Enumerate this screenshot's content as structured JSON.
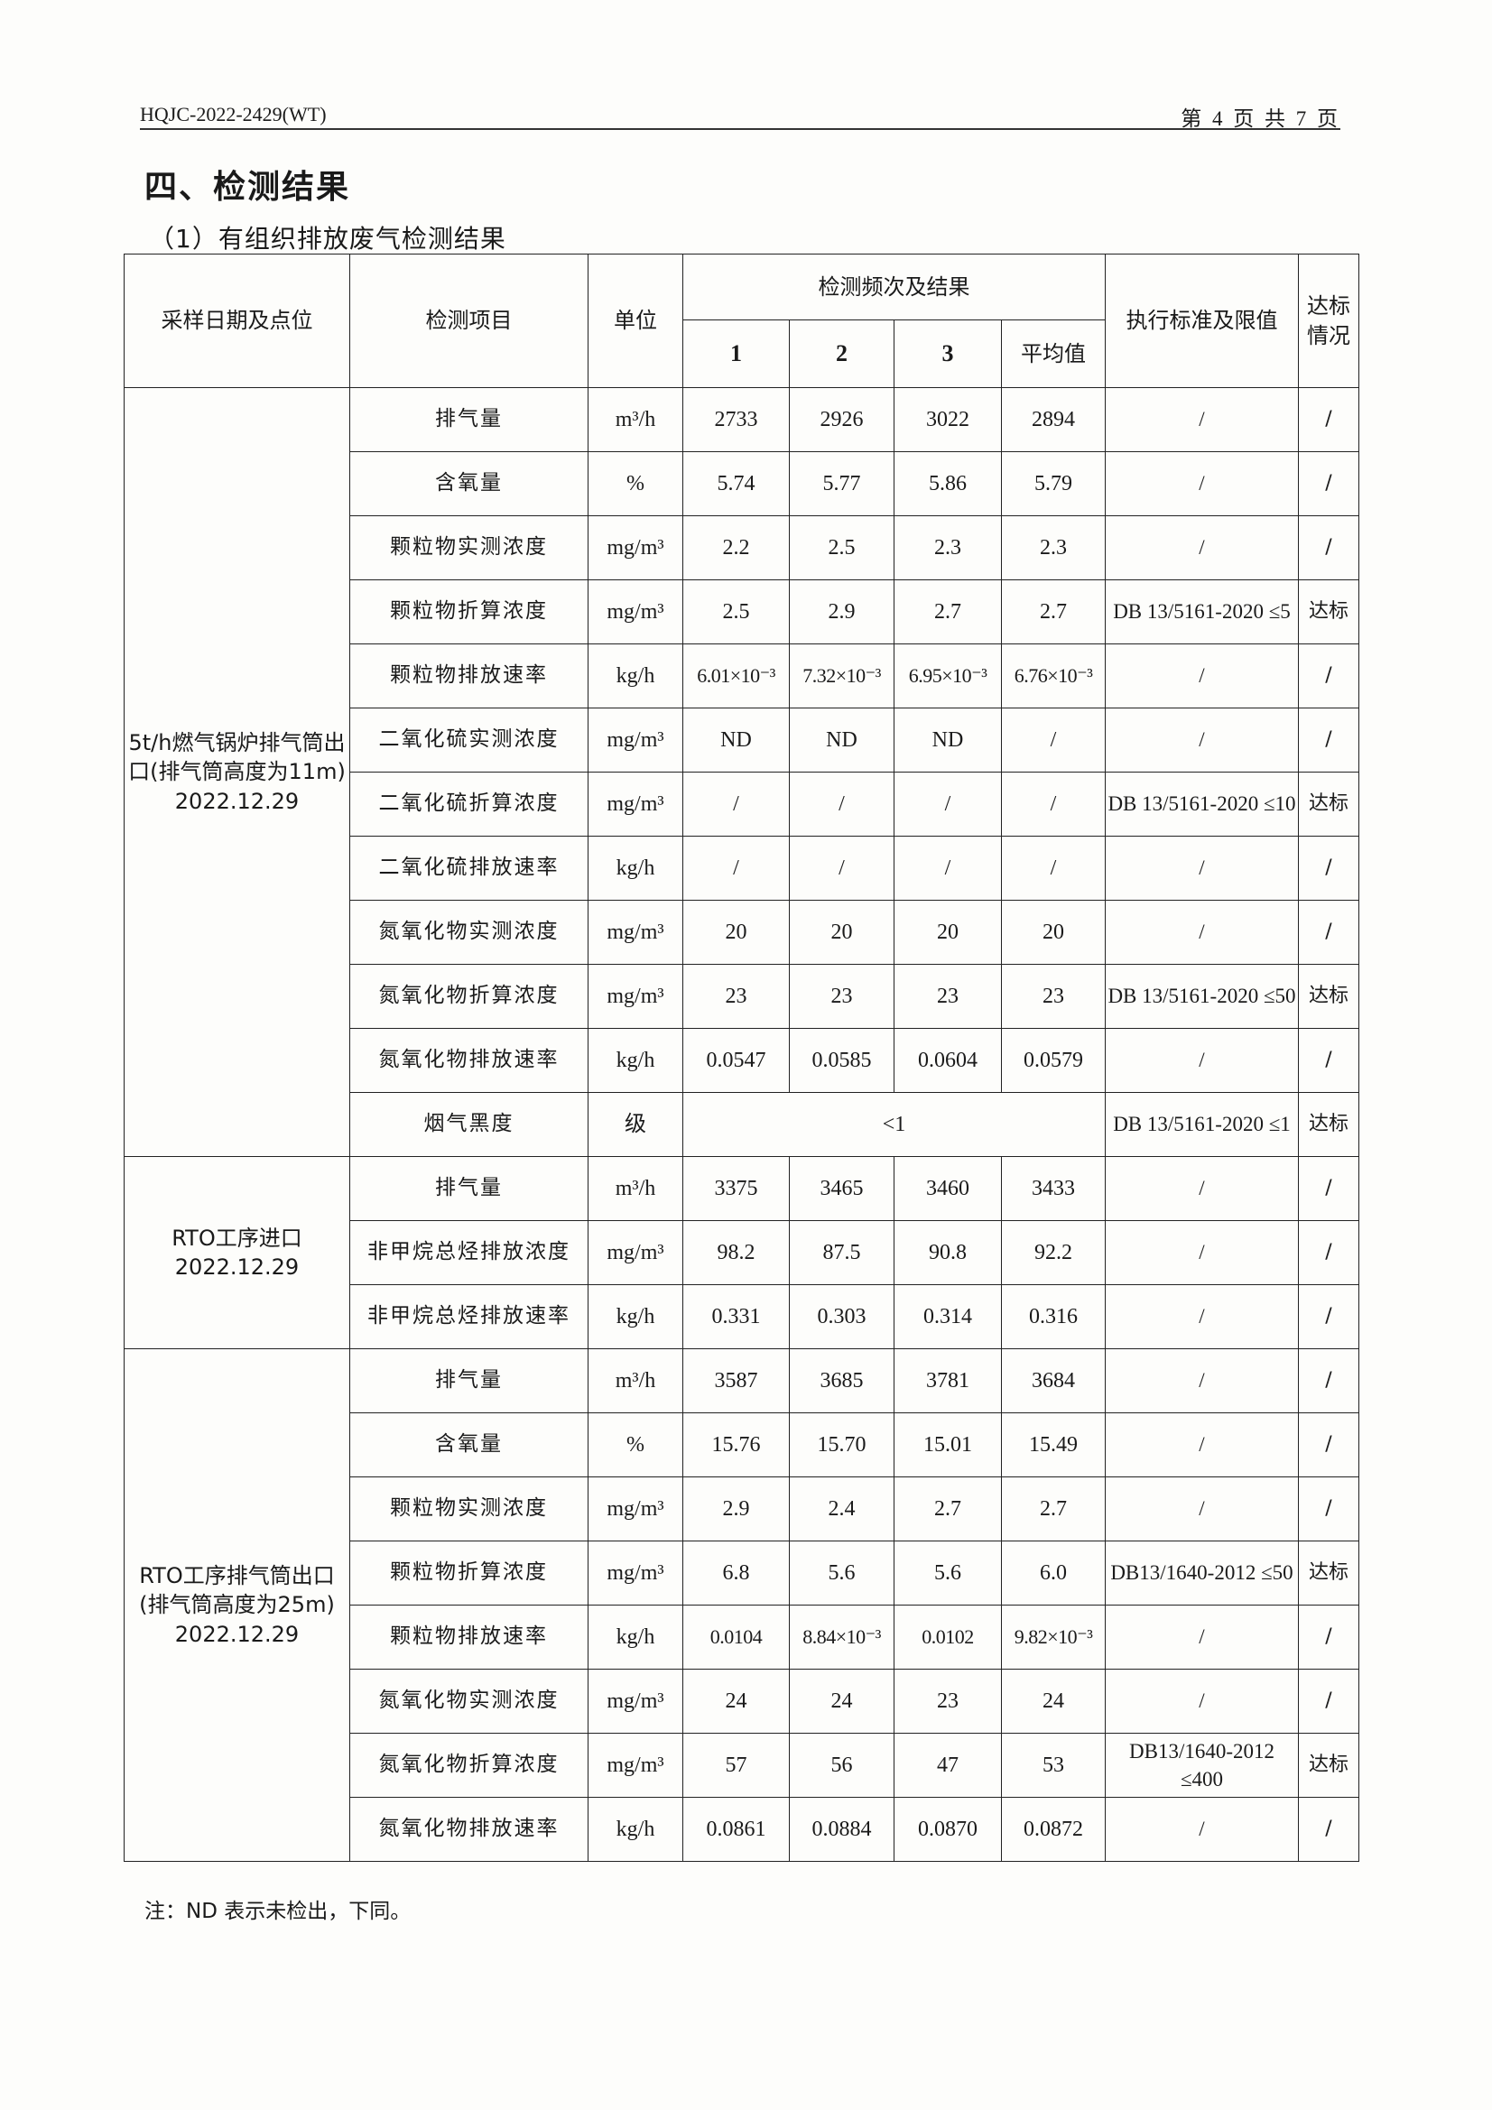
{
  "header": {
    "report_no": "HQJC-2022-2429(WT)",
    "page": "第 4 页 共 7 页"
  },
  "section_title": "四、检测结果",
  "subsection_title": "（1）有组织排放废气检测结果",
  "table": {
    "headers": {
      "location": "采样日期及点位",
      "item": "检测项目",
      "unit": "单位",
      "results": "检测频次及结果",
      "run1": "1",
      "run2": "2",
      "run3": "3",
      "avg": "平均值",
      "standard": "执行标准及限值",
      "compliance": "达标情况"
    },
    "groups": [
      {
        "location": "5t/h燃气锅炉排气筒出口(排气筒高度为11m) 2022.12.29",
        "rows": [
          {
            "item": "排气量",
            "unit": "m³/h",
            "v": [
              "2733",
              "2926",
              "3022",
              "2894"
            ],
            "std": "/",
            "ok": "/"
          },
          {
            "item": "含氧量",
            "unit": "%",
            "v": [
              "5.74",
              "5.77",
              "5.86",
              "5.79"
            ],
            "std": "/",
            "ok": "/"
          },
          {
            "item": "颗粒物实测浓度",
            "unit": "mg/m³",
            "v": [
              "2.2",
              "2.5",
              "2.3",
              "2.3"
            ],
            "std": "/",
            "ok": "/"
          },
          {
            "item": "颗粒物折算浓度",
            "unit": "mg/m³",
            "v": [
              "2.5",
              "2.9",
              "2.7",
              "2.7"
            ],
            "std": "DB 13/5161-2020 ≤5",
            "ok": "达标"
          },
          {
            "item": "颗粒物排放速率",
            "unit": "kg/h",
            "v": [
              "6.01×10⁻³",
              "7.32×10⁻³",
              "6.95×10⁻³",
              "6.76×10⁻³"
            ],
            "std": "/",
            "ok": "/"
          },
          {
            "item": "二氧化硫实测浓度",
            "unit": "mg/m³",
            "v": [
              "ND",
              "ND",
              "ND",
              "/"
            ],
            "std": "/",
            "ok": "/"
          },
          {
            "item": "二氧化硫折算浓度",
            "unit": "mg/m³",
            "v": [
              "/",
              "/",
              "/",
              "/"
            ],
            "std": "DB 13/5161-2020 ≤10",
            "ok": "达标"
          },
          {
            "item": "二氧化硫排放速率",
            "unit": "kg/h",
            "v": [
              "/",
              "/",
              "/",
              "/"
            ],
            "std": "/",
            "ok": "/"
          },
          {
            "item": "氮氧化物实测浓度",
            "unit": "mg/m³",
            "v": [
              "20",
              "20",
              "20",
              "20"
            ],
            "std": "/",
            "ok": "/"
          },
          {
            "item": "氮氧化物折算浓度",
            "unit": "mg/m³",
            "v": [
              "23",
              "23",
              "23",
              "23"
            ],
            "std": "DB 13/5161-2020 ≤50",
            "ok": "达标"
          },
          {
            "item": "氮氧化物排放速率",
            "unit": "kg/h",
            "v": [
              "0.0547",
              "0.0585",
              "0.0604",
              "0.0579"
            ],
            "std": "/",
            "ok": "/"
          },
          {
            "item": "烟气黑度",
            "unit": "级",
            "merged": "<1",
            "std": "DB 13/5161-2020 ≤1",
            "ok": "达标"
          }
        ]
      },
      {
        "location": "RTO工序进口 2022.12.29",
        "rows": [
          {
            "item": "排气量",
            "unit": "m³/h",
            "v": [
              "3375",
              "3465",
              "3460",
              "3433"
            ],
            "std": "/",
            "ok": "/"
          },
          {
            "item": "非甲烷总烃排放浓度",
            "unit": "mg/m³",
            "v": [
              "98.2",
              "87.5",
              "90.8",
              "92.2"
            ],
            "std": "/",
            "ok": "/"
          },
          {
            "item": "非甲烷总烃排放速率",
            "unit": "kg/h",
            "v": [
              "0.331",
              "0.303",
              "0.314",
              "0.316"
            ],
            "std": "/",
            "ok": "/"
          }
        ]
      },
      {
        "location": "RTO工序排气筒出口(排气筒高度为25m) 2022.12.29",
        "rows": [
          {
            "item": "排气量",
            "unit": "m³/h",
            "v": [
              "3587",
              "3685",
              "3781",
              "3684"
            ],
            "std": "/",
            "ok": "/"
          },
          {
            "item": "含氧量",
            "unit": "%",
            "v": [
              "15.76",
              "15.70",
              "15.01",
              "15.49"
            ],
            "std": "/",
            "ok": "/"
          },
          {
            "item": "颗粒物实测浓度",
            "unit": "mg/m³",
            "v": [
              "2.9",
              "2.4",
              "2.7",
              "2.7"
            ],
            "std": "/",
            "ok": "/"
          },
          {
            "item": "颗粒物折算浓度",
            "unit": "mg/m³",
            "v": [
              "6.8",
              "5.6",
              "5.6",
              "6.0"
            ],
            "std": "DB13/1640-2012 ≤50",
            "ok": "达标"
          },
          {
            "item": "颗粒物排放速率",
            "unit": "kg/h",
            "v": [
              "0.0104",
              "8.84×10⁻³",
              "0.0102",
              "9.82×10⁻³"
            ],
            "std": "/",
            "ok": "/"
          },
          {
            "item": "氮氧化物实测浓度",
            "unit": "mg/m³",
            "v": [
              "24",
              "24",
              "23",
              "24"
            ],
            "std": "/",
            "ok": "/"
          },
          {
            "item": "氮氧化物折算浓度",
            "unit": "mg/m³",
            "v": [
              "57",
              "56",
              "47",
              "53"
            ],
            "std": "DB13/1640-2012 ≤400",
            "ok": "达标"
          },
          {
            "item": "氮氧化物排放速率",
            "unit": "kg/h",
            "v": [
              "0.0861",
              "0.0884",
              "0.0870",
              "0.0872"
            ],
            "std": "/",
            "ok": "/"
          }
        ]
      }
    ]
  },
  "note": "注：ND 表示未检出，下同。"
}
